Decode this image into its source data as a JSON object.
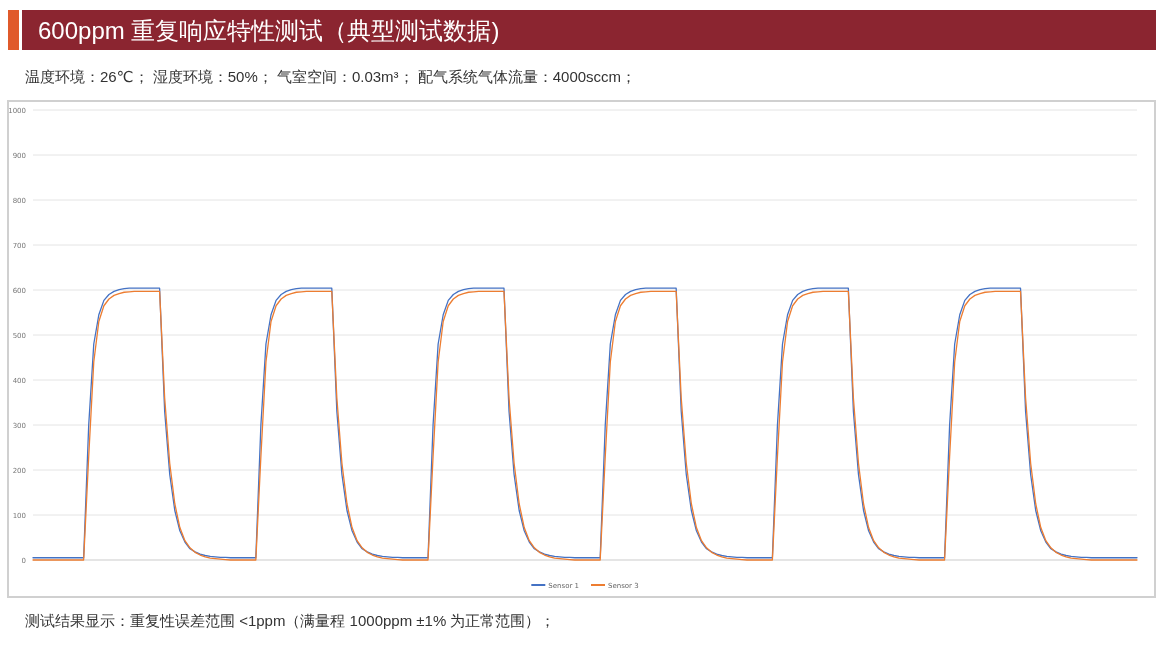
{
  "chart_data": {
    "type": "line",
    "title": "600ppm 重复响应特性测试（典型测试数据)",
    "subtitle": "温度环境：26℃；  湿度环境：50%；  气室空间：0.03m³；  配气系统气体流量：4000sccm；",
    "annotations": [
      "测试结果显示：重复性误差范围 <1ppm（满量程 1000ppm ±1% 为正常范围）；"
    ],
    "categories": [
      null,
      null,
      null,
      null,
      null,
      null,
      null,
      null,
      null,
      null,
      null,
      null,
      null,
      null,
      null,
      null,
      null,
      null,
      null,
      null,
      null,
      null,
      null,
      null,
      null,
      null,
      null,
      null,
      null,
      null,
      null,
      null,
      null,
      null,
      null,
      null,
      null,
      null,
      null,
      null,
      null,
      null,
      null,
      null,
      null,
      null,
      null,
      null,
      null,
      null,
      null,
      null,
      null,
      null,
      null,
      null,
      null,
      null,
      null,
      null,
      null,
      null,
      null,
      null,
      null,
      null,
      null,
      null,
      null,
      null,
      null,
      null,
      null,
      null,
      null,
      null,
      null,
      null,
      null,
      null,
      null,
      null,
      null,
      null,
      null,
      null,
      null,
      null,
      null,
      null,
      null,
      null,
      null,
      null,
      null,
      null,
      null,
      null,
      null,
      null,
      null,
      null,
      null,
      null,
      null,
      null,
      null,
      null,
      null,
      null,
      null,
      null,
      null,
      null,
      null,
      null,
      null,
      null,
      null,
      null,
      null,
      null,
      null,
      null,
      null,
      null,
      null,
      null,
      null,
      null,
      null,
      null,
      null,
      null,
      null,
      null,
      null,
      null,
      null,
      null,
      null,
      null,
      null,
      null,
      null,
      null,
      null,
      null,
      null,
      null,
      null,
      null,
      null,
      null,
      null,
      null,
      null,
      null,
      null,
      null,
      null,
      null,
      null,
      null,
      null,
      null,
      null,
      null,
      null,
      null,
      null,
      null,
      null,
      null,
      null,
      null,
      null,
      null,
      null,
      null,
      null,
      null,
      null,
      null,
      null,
      null,
      null,
      null,
      null,
      null,
      null,
      null,
      null,
      null,
      null,
      null,
      null,
      null,
      null,
      null,
      null,
      null,
      null,
      null,
      null,
      null,
      null,
      null,
      null,
      null,
      null,
      null,
      null,
      null,
      null,
      null,
      null,
      null,
      null
    ],
    "series": [
      {
        "name": "Sensor 1",
        "color": "#4472c4",
        "values": [
          5,
          5,
          5,
          5,
          5,
          5,
          5,
          5,
          5,
          5,
          5,
          300,
          480,
          545,
          577,
          590,
          597,
          601,
          603,
          604,
          604,
          604,
          604,
          604,
          604,
          604,
          330,
          190,
          110,
          65,
          40,
          25,
          18,
          13,
          10,
          8,
          7,
          6,
          6,
          5,
          5,
          5,
          5,
          5,
          5,
          300,
          480,
          545,
          577,
          590,
          597,
          601,
          603,
          604,
          604,
          604,
          604,
          604,
          604,
          604,
          330,
          190,
          110,
          65,
          40,
          25,
          18,
          13,
          10,
          8,
          7,
          6,
          6,
          5,
          5,
          5,
          5,
          5,
          5,
          300,
          480,
          545,
          577,
          590,
          597,
          601,
          603,
          604,
          604,
          604,
          604,
          604,
          604,
          604,
          330,
          190,
          110,
          65,
          40,
          25,
          18,
          13,
          10,
          8,
          7,
          6,
          6,
          5,
          5,
          5,
          5,
          5,
          5,
          300,
          480,
          545,
          577,
          590,
          597,
          601,
          603,
          604,
          604,
          604,
          604,
          604,
          604,
          604,
          330,
          190,
          110,
          65,
          40,
          25,
          18,
          13,
          10,
          8,
          7,
          6,
          6,
          5,
          5,
          5,
          5,
          5,
          5,
          300,
          480,
          545,
          577,
          590,
          597,
          601,
          603,
          604,
          604,
          604,
          604,
          604,
          604,
          604,
          330,
          190,
          110,
          65,
          40,
          25,
          18,
          13,
          10,
          8,
          7,
          6,
          6,
          5,
          5,
          5,
          5,
          5,
          5,
          300,
          480,
          545,
          577,
          590,
          597,
          601,
          603,
          604,
          604,
          604,
          604,
          604,
          604,
          604,
          330,
          190,
          110,
          65,
          40,
          25,
          18,
          13,
          10,
          8,
          7,
          6,
          6,
          5,
          5,
          5,
          5,
          5,
          5,
          5,
          5,
          5,
          5
        ]
      },
      {
        "name": "Sensor 3",
        "color": "#ed7d31",
        "values": [
          0,
          0,
          0,
          0,
          0,
          0,
          0,
          0,
          0,
          0,
          0,
          230,
          440,
          530,
          565,
          580,
          588,
          592,
          595,
          596,
          597,
          597,
          597,
          597,
          597,
          597,
          360,
          215,
          125,
          72,
          43,
          27,
          17,
          11,
          7,
          4,
          3,
          2,
          1,
          0,
          0,
          0,
          0,
          0,
          0,
          230,
          440,
          530,
          565,
          580,
          588,
          592,
          595,
          596,
          597,
          597,
          597,
          597,
          597,
          597,
          360,
          215,
          125,
          72,
          43,
          27,
          17,
          11,
          7,
          4,
          3,
          2,
          1,
          0,
          0,
          0,
          0,
          0,
          0,
          230,
          440,
          530,
          565,
          580,
          588,
          592,
          595,
          596,
          597,
          597,
          597,
          597,
          597,
          597,
          360,
          215,
          125,
          72,
          43,
          27,
          17,
          11,
          7,
          4,
          3,
          2,
          1,
          0,
          0,
          0,
          0,
          0,
          0,
          230,
          440,
          530,
          565,
          580,
          588,
          592,
          595,
          596,
          597,
          597,
          597,
          597,
          597,
          597,
          360,
          215,
          125,
          72,
          43,
          27,
          17,
          11,
          7,
          4,
          3,
          2,
          1,
          0,
          0,
          0,
          0,
          0,
          0,
          230,
          440,
          530,
          565,
          580,
          588,
          592,
          595,
          596,
          597,
          597,
          597,
          597,
          597,
          597,
          360,
          215,
          125,
          72,
          43,
          27,
          17,
          11,
          7,
          4,
          3,
          2,
          1,
          0,
          0,
          0,
          0,
          0,
          0,
          230,
          440,
          530,
          565,
          580,
          588,
          592,
          595,
          596,
          597,
          597,
          597,
          597,
          597,
          597,
          360,
          215,
          125,
          72,
          43,
          27,
          17,
          11,
          7,
          4,
          3,
          2,
          1,
          0,
          0,
          0,
          0,
          0,
          0,
          0,
          0,
          0,
          0
        ]
      }
    ],
    "ylim": [
      0,
      1000
    ],
    "yticks": [
      0,
      100,
      200,
      300,
      400,
      500,
      600,
      700,
      800,
      900,
      1000
    ],
    "grid": "y",
    "legend": "bottom"
  }
}
